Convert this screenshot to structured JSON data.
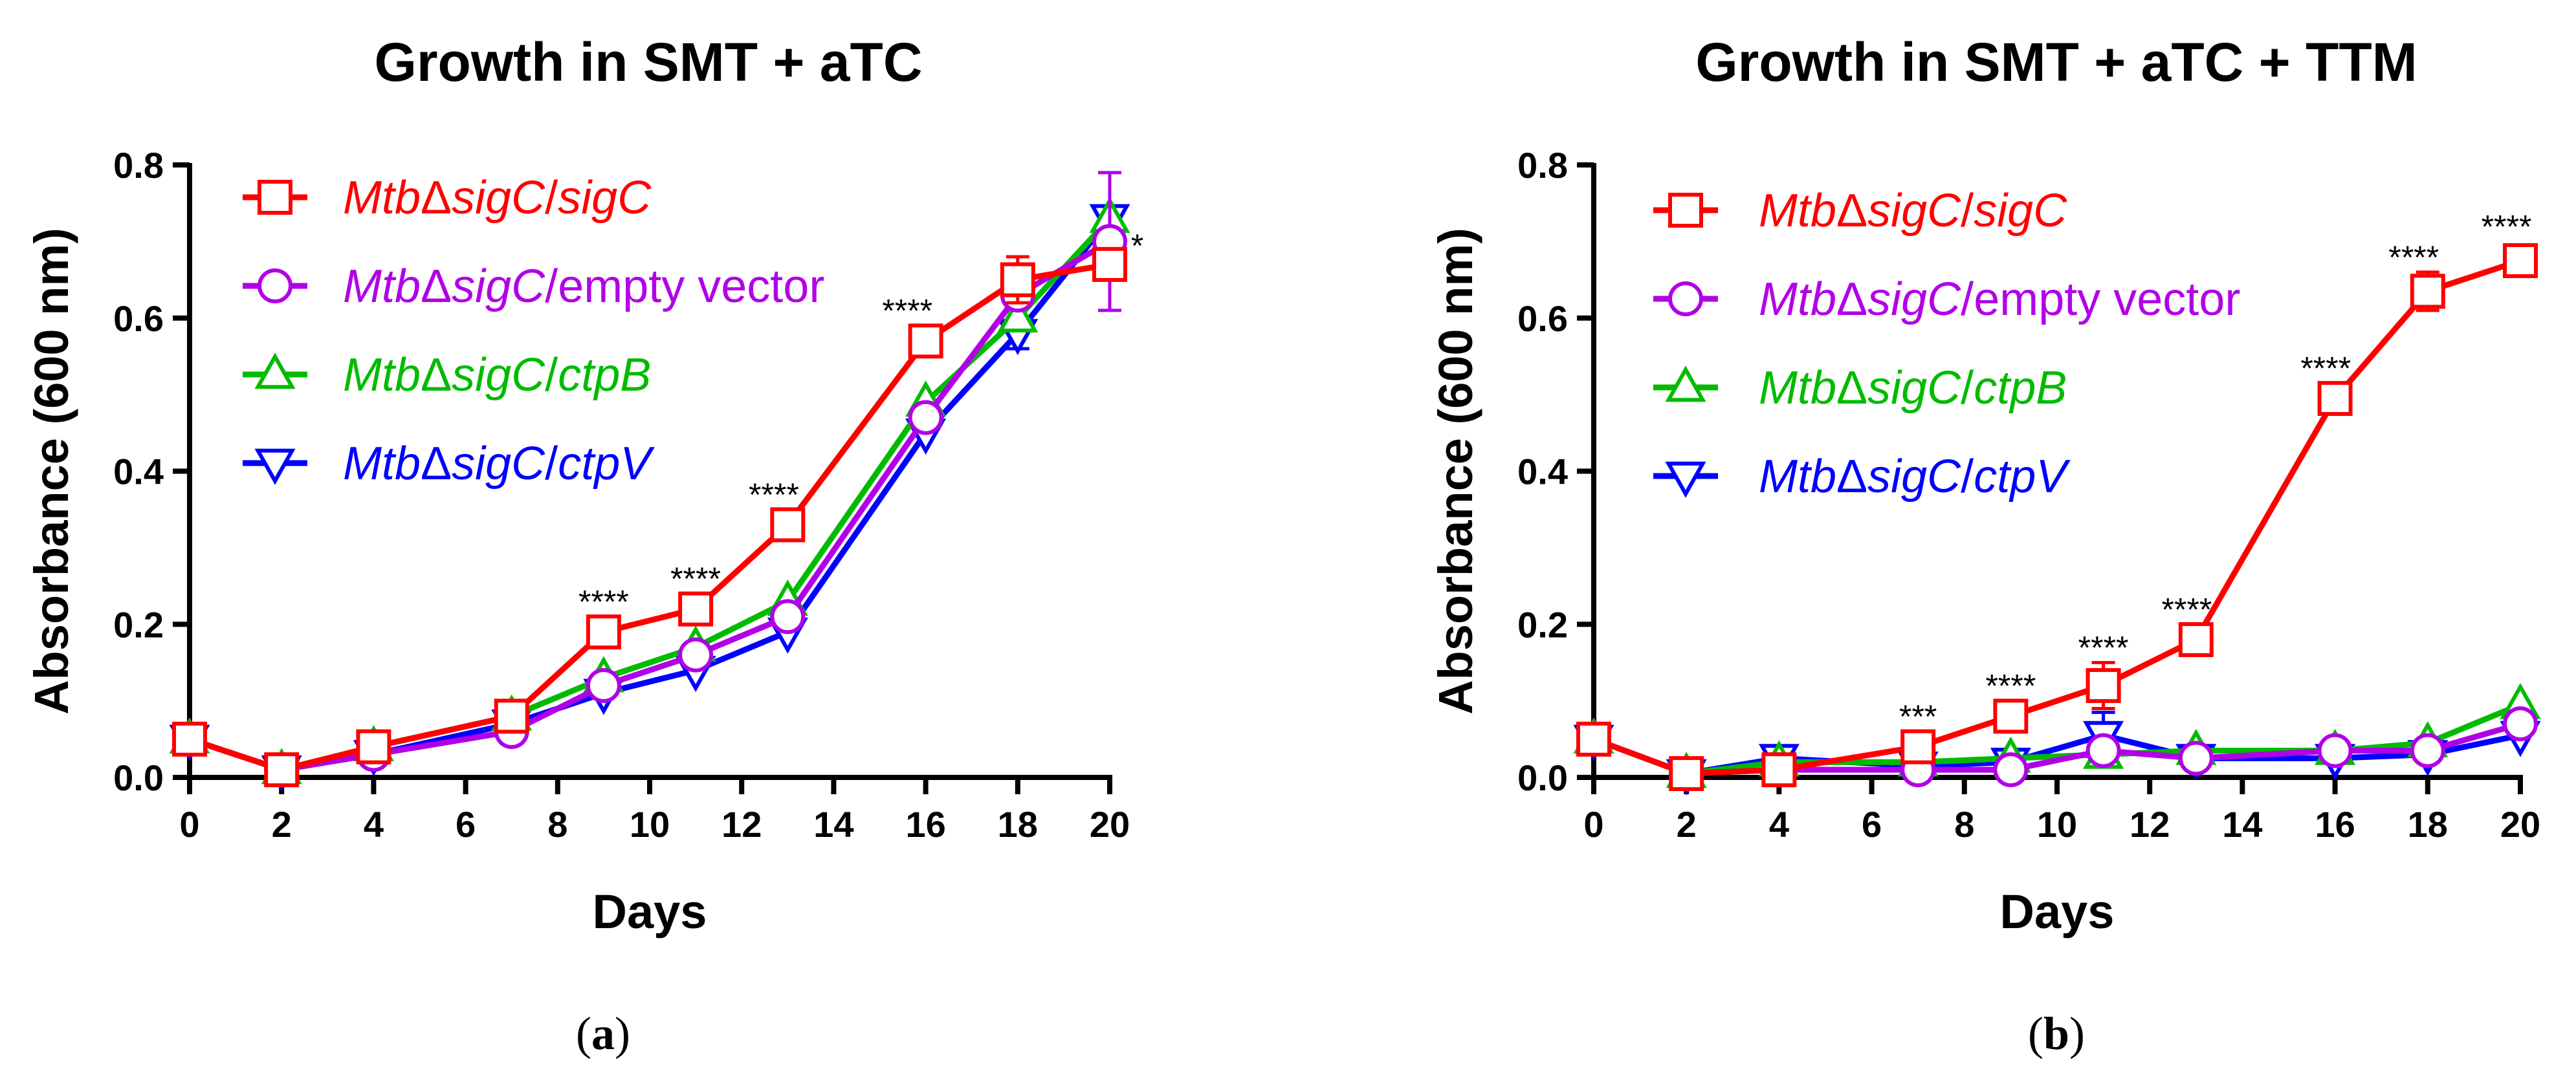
{
  "chart_data": [
    {
      "type": "line",
      "title": "Growth in  SMT + aTC",
      "xlabel": "Days",
      "ylabel": "Absorbance (600 nm)",
      "xlim": [
        0,
        20
      ],
      "ylim": [
        0,
        0.8
      ],
      "xticks": [
        "0",
        "2",
        "4",
        "6",
        "8",
        "10",
        "12",
        "14",
        "16",
        "18",
        "20"
      ],
      "yticks": [
        "0.0",
        "0.2",
        "0.4",
        "0.6",
        "0.8"
      ],
      "legend_position": "top-left",
      "caption": {
        "open": "(",
        "letter": "a",
        "close": ")"
      },
      "x": [
        0,
        2,
        4,
        7,
        9,
        11,
        13,
        16,
        18,
        20
      ],
      "series": [
        {
          "strain": "Mtb",
          "delta": "Δ",
          "gene": "sigC",
          "slash": "/",
          "suffix": "sigC",
          "suffix_italic": true,
          "color": "#ff0000",
          "marker": "square",
          "values": [
            0.05,
            0.01,
            0.04,
            0.08,
            0.19,
            0.22,
            0.33,
            0.57,
            0.65,
            0.67
          ],
          "errors": [
            0,
            0,
            0,
            0,
            0,
            0,
            0,
            0,
            0.03,
            0.02
          ]
        },
        {
          "strain": "Mtb",
          "delta": "Δ",
          "gene": "sigC",
          "slash": "/",
          "suffix": "empty vector",
          "suffix_italic": false,
          "color": "#b100e8",
          "marker": "circle",
          "values": [
            0.05,
            0.01,
            0.03,
            0.06,
            0.12,
            0.16,
            0.21,
            0.47,
            0.63,
            0.7
          ],
          "errors": [
            0,
            0,
            0,
            0,
            0,
            0,
            0,
            0,
            0,
            0.09
          ]
        },
        {
          "strain": "Mtb",
          "delta": "Δ",
          "gene": "sigC",
          "slash": "/",
          "suffix": "ctpB",
          "suffix_italic": true,
          "color": "#00bb00",
          "marker": "triangle-up",
          "values": [
            0.05,
            0.01,
            0.04,
            0.08,
            0.13,
            0.17,
            0.23,
            0.49,
            0.6,
            0.73
          ],
          "errors": [
            0,
            0,
            0,
            0,
            0,
            0,
            0,
            0,
            0,
            0
          ]
        },
        {
          "strain": "Mtb",
          "delta": "Δ",
          "gene": "sigC",
          "slash": "/",
          "suffix": "ctpV",
          "suffix_italic": true,
          "color": "#0000ff",
          "marker": "triangle-down",
          "values": [
            0.05,
            0.01,
            0.03,
            0.07,
            0.11,
            0.14,
            0.19,
            0.45,
            0.58,
            0.73
          ],
          "errors": [
            0,
            0,
            0,
            0,
            0,
            0,
            0,
            0,
            0.02,
            0
          ]
        }
      ],
      "annotations": [
        {
          "text": "****",
          "x": 9,
          "y": 0.215
        },
        {
          "text": "****",
          "x": 11,
          "y": 0.245
        },
        {
          "text": "****",
          "x": 12.7,
          "y": 0.355
        },
        {
          "text": "****",
          "x": 15.6,
          "y": 0.595
        },
        {
          "text": "*",
          "x": 20.6,
          "y": 0.68
        }
      ]
    },
    {
      "type": "line",
      "title": "Growth in SMT + aTC + TTM",
      "xlabel": "Days",
      "ylabel": "Absorbance (600 nm)",
      "xlim": [
        0,
        20
      ],
      "ylim": [
        0,
        0.8
      ],
      "xticks": [
        "0",
        "2",
        "4",
        "6",
        "8",
        "10",
        "12",
        "14",
        "16",
        "18",
        "20"
      ],
      "yticks": [
        "0.0",
        "0.2",
        "0.4",
        "0.6",
        "0.8"
      ],
      "legend_position": "top-left",
      "caption": {
        "open": "(",
        "letter": "b",
        "close": ")"
      },
      "x": [
        0,
        2,
        4,
        7,
        9,
        11,
        13,
        16,
        18,
        20
      ],
      "series": [
        {
          "strain": "Mtb",
          "delta": "Δ",
          "gene": "sigC",
          "slash": "/",
          "suffix": "sigC",
          "suffix_italic": true,
          "color": "#ff0000",
          "marker": "square",
          "values": [
            0.05,
            0.005,
            0.01,
            0.04,
            0.08,
            0.12,
            0.18,
            0.495,
            0.635,
            0.675
          ],
          "errors": [
            0,
            0,
            0,
            0,
            0,
            0.03,
            0,
            0,
            0.025,
            0.015
          ]
        },
        {
          "strain": "Mtb",
          "delta": "Δ",
          "gene": "sigC",
          "slash": "/",
          "suffix": "empty vector",
          "suffix_italic": false,
          "color": "#b100e8",
          "marker": "circle",
          "values": [
            0.05,
            0.005,
            0.01,
            0.01,
            0.01,
            0.035,
            0.025,
            0.035,
            0.035,
            0.07
          ],
          "errors": [
            0,
            0,
            0,
            0,
            0,
            0,
            0,
            0,
            0,
            0
          ]
        },
        {
          "strain": "Mtb",
          "delta": "Δ",
          "gene": "sigC",
          "slash": "/",
          "suffix": "ctpB",
          "suffix_italic": true,
          "color": "#00bb00",
          "marker": "triangle-up",
          "values": [
            0.05,
            0.005,
            0.02,
            0.02,
            0.025,
            0.03,
            0.035,
            0.035,
            0.045,
            0.095
          ],
          "errors": [
            0,
            0,
            0,
            0,
            0,
            0,
            0,
            0,
            0,
            0
          ]
        },
        {
          "strain": "Mtb",
          "delta": "Δ",
          "gene": "sigC",
          "slash": "/",
          "suffix": "ctpV",
          "suffix_italic": true,
          "color": "#0000ff",
          "marker": "triangle-down",
          "values": [
            0.05,
            0.005,
            0.025,
            0.015,
            0.02,
            0.055,
            0.025,
            0.025,
            0.03,
            0.055
          ],
          "errors": [
            0,
            0,
            0,
            0,
            0,
            0.03,
            0,
            0,
            0,
            0
          ]
        }
      ],
      "annotations": [
        {
          "text": "***",
          "x": 7,
          "y": 0.065
        },
        {
          "text": "****",
          "x": 9,
          "y": 0.105
        },
        {
          "text": "****",
          "x": 11,
          "y": 0.155
        },
        {
          "text": "****",
          "x": 12.8,
          "y": 0.205
        },
        {
          "text": "****",
          "x": 15.8,
          "y": 0.52
        },
        {
          "text": "****",
          "x": 17.7,
          "y": 0.665
        },
        {
          "text": "****",
          "x": 19.7,
          "y": 0.705
        }
      ]
    }
  ]
}
